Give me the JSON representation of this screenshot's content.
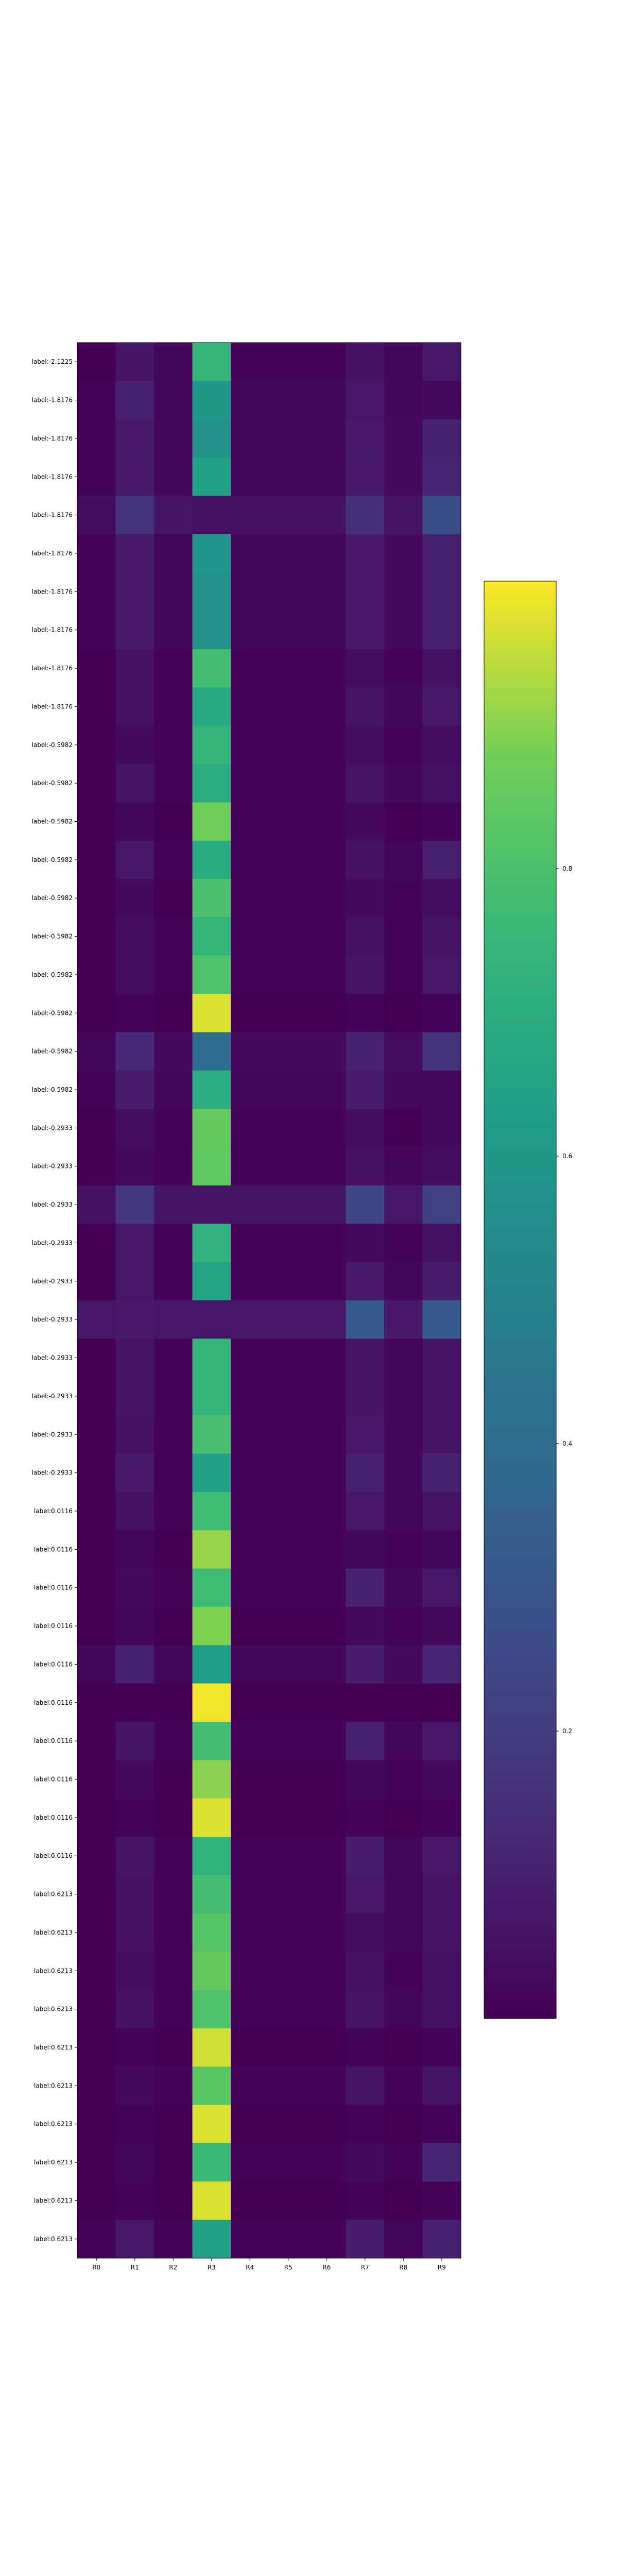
{
  "chart_data": {
    "type": "heatmap",
    "title": "",
    "xlabel": "",
    "ylabel": "",
    "columns": [
      "R0",
      "R1",
      "R2",
      "R3",
      "R4",
      "R5",
      "R6",
      "R7",
      "R8",
      "R9"
    ],
    "rows": [
      "label:-2.1225",
      "label:-1.8176",
      "label:-1.8176",
      "label:-1.8176",
      "label:-1.8176",
      "label:-1.8176",
      "label:-1.8176",
      "label:-1.8176",
      "label:-1.8176",
      "label:-1.8176",
      "label:-0.5982",
      "label:-0.5982",
      "label:-0.5982",
      "label:-0.5982",
      "label:-0.5982",
      "label:-0.5982",
      "label:-0.5982",
      "label:-0.5982",
      "label:-0.5982",
      "label:-0.5982",
      "label:-0.2933",
      "label:-0.2933",
      "label:-0.2933",
      "label:-0.2933",
      "label:-0.2933",
      "label:-0.2933",
      "label:-0.2933",
      "label:-0.2933",
      "label:-0.2933",
      "label:-0.2933",
      "label:0.0116",
      "label:0.0116",
      "label:0.0116",
      "label:0.0116",
      "label:0.0116",
      "label:0.0116",
      "label:0.0116",
      "label:0.0116",
      "label:0.0116",
      "label:0.0116",
      "label:0.6213",
      "label:0.6213",
      "label:0.6213",
      "label:0.6213",
      "label:0.6213",
      "label:0.6213",
      "label:0.6213",
      "label:0.6213",
      "label:0.6213",
      "label:0.6213"
    ],
    "values": [
      [
        0.0,
        0.06,
        0.02,
        0.74,
        0.01,
        0.01,
        0.01,
        0.05,
        0.02,
        0.07
      ],
      [
        0.01,
        0.1,
        0.02,
        0.6,
        0.02,
        0.02,
        0.02,
        0.07,
        0.02,
        0.03
      ],
      [
        0.01,
        0.08,
        0.02,
        0.58,
        0.02,
        0.02,
        0.02,
        0.08,
        0.03,
        0.11
      ],
      [
        0.01,
        0.08,
        0.02,
        0.64,
        0.02,
        0.02,
        0.02,
        0.08,
        0.03,
        0.12
      ],
      [
        0.04,
        0.17,
        0.06,
        0.05,
        0.05,
        0.05,
        0.05,
        0.15,
        0.06,
        0.27
      ],
      [
        0.01,
        0.08,
        0.02,
        0.59,
        0.02,
        0.02,
        0.02,
        0.08,
        0.03,
        0.1
      ],
      [
        0.01,
        0.08,
        0.02,
        0.57,
        0.02,
        0.02,
        0.02,
        0.08,
        0.03,
        0.1
      ],
      [
        0.01,
        0.08,
        0.02,
        0.57,
        0.02,
        0.02,
        0.02,
        0.08,
        0.03,
        0.1
      ],
      [
        0.0,
        0.05,
        0.01,
        0.78,
        0.01,
        0.01,
        0.01,
        0.04,
        0.01,
        0.05
      ],
      [
        0.0,
        0.05,
        0.01,
        0.68,
        0.01,
        0.01,
        0.01,
        0.06,
        0.02,
        0.08
      ],
      [
        0.0,
        0.03,
        0.01,
        0.74,
        0.01,
        0.01,
        0.01,
        0.04,
        0.01,
        0.04
      ],
      [
        0.0,
        0.06,
        0.01,
        0.7,
        0.01,
        0.01,
        0.01,
        0.06,
        0.02,
        0.05
      ],
      [
        0.0,
        0.02,
        0.0,
        0.87,
        0.01,
        0.01,
        0.01,
        0.03,
        0.0,
        0.01
      ],
      [
        0.0,
        0.07,
        0.01,
        0.69,
        0.01,
        0.01,
        0.01,
        0.05,
        0.02,
        0.1
      ],
      [
        0.0,
        0.03,
        0.0,
        0.8,
        0.01,
        0.01,
        0.01,
        0.03,
        0.01,
        0.04
      ],
      [
        0.0,
        0.04,
        0.01,
        0.74,
        0.01,
        0.01,
        0.01,
        0.05,
        0.01,
        0.06
      ],
      [
        0.0,
        0.04,
        0.01,
        0.81,
        0.01,
        0.01,
        0.01,
        0.06,
        0.01,
        0.07
      ],
      [
        0.0,
        0.01,
        0.0,
        0.97,
        0.0,
        0.0,
        0.0,
        0.01,
        0.0,
        0.01
      ],
      [
        0.02,
        0.13,
        0.03,
        0.4,
        0.03,
        0.03,
        0.03,
        0.11,
        0.04,
        0.17
      ],
      [
        0.01,
        0.09,
        0.02,
        0.7,
        0.02,
        0.02,
        0.02,
        0.09,
        0.03,
        0.03
      ],
      [
        0.0,
        0.04,
        0.01,
        0.85,
        0.01,
        0.01,
        0.01,
        0.04,
        0.0,
        0.03
      ],
      [
        0.0,
        0.03,
        0.01,
        0.84,
        0.01,
        0.01,
        0.01,
        0.05,
        0.02,
        0.04
      ],
      [
        0.05,
        0.18,
        0.06,
        0.06,
        0.06,
        0.06,
        0.06,
        0.24,
        0.07,
        0.22
      ],
      [
        0.0,
        0.07,
        0.01,
        0.72,
        0.01,
        0.01,
        0.01,
        0.03,
        0.01,
        0.05
      ],
      [
        0.0,
        0.07,
        0.01,
        0.66,
        0.01,
        0.01,
        0.01,
        0.08,
        0.02,
        0.09
      ],
      [
        0.07,
        0.08,
        0.07,
        0.07,
        0.07,
        0.07,
        0.07,
        0.32,
        0.08,
        0.32
      ],
      [
        0.0,
        0.06,
        0.01,
        0.74,
        0.01,
        0.01,
        0.01,
        0.06,
        0.02,
        0.06
      ],
      [
        0.0,
        0.06,
        0.01,
        0.74,
        0.01,
        0.01,
        0.01,
        0.06,
        0.02,
        0.06
      ],
      [
        0.0,
        0.05,
        0.01,
        0.79,
        0.01,
        0.01,
        0.01,
        0.07,
        0.02,
        0.06
      ],
      [
        0.0,
        0.08,
        0.01,
        0.64,
        0.01,
        0.01,
        0.01,
        0.1,
        0.02,
        0.11
      ],
      [
        0.0,
        0.05,
        0.01,
        0.77,
        0.01,
        0.01,
        0.01,
        0.07,
        0.02,
        0.06
      ],
      [
        0.0,
        0.02,
        0.0,
        0.91,
        0.01,
        0.01,
        0.01,
        0.02,
        0.01,
        0.02
      ],
      [
        0.0,
        0.03,
        0.01,
        0.77,
        0.01,
        0.01,
        0.01,
        0.11,
        0.02,
        0.07
      ],
      [
        0.0,
        0.02,
        0.0,
        0.89,
        0.0,
        0.0,
        0.0,
        0.03,
        0.01,
        0.03
      ],
      [
        0.02,
        0.1,
        0.02,
        0.63,
        0.02,
        0.02,
        0.02,
        0.09,
        0.03,
        0.12
      ],
      [
        0.0,
        0.0,
        0.0,
        0.99,
        0.0,
        0.0,
        0.0,
        0.0,
        0.0,
        0.0
      ],
      [
        0.0,
        0.06,
        0.01,
        0.78,
        0.01,
        0.01,
        0.01,
        0.1,
        0.02,
        0.07
      ],
      [
        0.0,
        0.03,
        0.0,
        0.9,
        0.0,
        0.0,
        0.0,
        0.02,
        0.01,
        0.03
      ],
      [
        0.0,
        0.01,
        0.0,
        0.97,
        0.0,
        0.0,
        0.0,
        0.01,
        0.0,
        0.01
      ],
      [
        0.0,
        0.06,
        0.01,
        0.73,
        0.01,
        0.01,
        0.01,
        0.09,
        0.02,
        0.07
      ],
      [
        0.0,
        0.05,
        0.01,
        0.78,
        0.01,
        0.01,
        0.01,
        0.07,
        0.02,
        0.06
      ],
      [
        0.0,
        0.05,
        0.01,
        0.82,
        0.01,
        0.01,
        0.01,
        0.04,
        0.02,
        0.06
      ],
      [
        0.0,
        0.04,
        0.01,
        0.85,
        0.01,
        0.01,
        0.01,
        0.05,
        0.01,
        0.05
      ],
      [
        0.0,
        0.05,
        0.01,
        0.81,
        0.01,
        0.01,
        0.01,
        0.06,
        0.02,
        0.05
      ],
      [
        0.0,
        0.01,
        0.0,
        0.96,
        0.0,
        0.0,
        0.0,
        0.01,
        0.0,
        0.01
      ],
      [
        0.0,
        0.03,
        0.01,
        0.83,
        0.01,
        0.01,
        0.01,
        0.06,
        0.01,
        0.06
      ],
      [
        0.0,
        0.01,
        0.0,
        0.97,
        0.0,
        0.0,
        0.0,
        0.01,
        0.0,
        0.01
      ],
      [
        0.0,
        0.02,
        0.0,
        0.76,
        0.01,
        0.01,
        0.01,
        0.03,
        0.01,
        0.12
      ],
      [
        0.0,
        0.01,
        0.0,
        0.97,
        0.0,
        0.0,
        0.0,
        0.01,
        0.0,
        0.01
      ],
      [
        0.01,
        0.07,
        0.01,
        0.64,
        0.01,
        0.01,
        0.01,
        0.09,
        0.02,
        0.1
      ]
    ],
    "vmin": 0.0,
    "vmax": 1.0,
    "colormap": "viridis",
    "colorbar_ticks": [
      "0.2",
      "0.4",
      "0.6",
      "0.8"
    ],
    "colorbar_tick_values": [
      0.2,
      0.4,
      0.6,
      0.8
    ]
  }
}
